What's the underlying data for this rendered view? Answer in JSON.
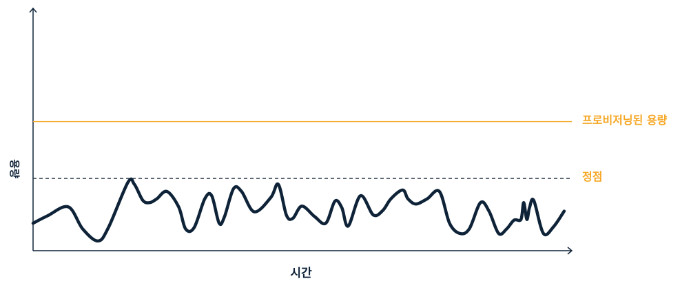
{
  "chart_data": {
    "type": "line",
    "title": "",
    "xlabel": "시간",
    "ylabel": "용량",
    "xlim": [
      0,
      100
    ],
    "ylim": [
      0,
      100
    ],
    "grid": false,
    "reference_lines": [
      {
        "label": "프로비저닝된 용량",
        "y": 54.5,
        "style": "solid",
        "color": "#F5A623"
      },
      {
        "label": "정점",
        "y": 30.5,
        "style": "dashed",
        "color": "#1B2A3A"
      }
    ],
    "series": [
      {
        "name": "",
        "color": "#0F2338",
        "x": [
          0,
          2.7,
          6.6,
          9.3,
          12.2,
          14.2,
          17.8,
          19.0,
          20.6,
          21.9,
          23.2,
          25.1,
          27.3,
          28.6,
          30.2,
          32.2,
          33.5,
          34.9,
          35.9,
          37.6,
          39.1,
          41.5,
          44.6,
          46.0,
          47.5,
          48.7,
          50.4,
          52.8,
          54.9,
          56.6,
          57.9,
          59.1,
          61.4,
          63.8,
          65.6,
          67.1,
          69.3,
          70.3,
          71.8,
          73.9,
          76.2,
          78.1,
          80.0,
          81.8,
          83.9,
          85.5,
          87.3,
          88.8,
          90.2,
          91.5,
          92.0,
          92.6,
          93.1,
          93.9,
          95.7,
          97.6,
          99.6
        ],
        "values": [
          11.6,
          14.7,
          18.5,
          9.2,
          4.1,
          10.1,
          28.9,
          28.0,
          21.2,
          20.3,
          21.9,
          25.0,
          18.5,
          9.2,
          9.7,
          21.9,
          23.2,
          11.6,
          14.4,
          26.2,
          25.0,
          16.4,
          22.5,
          28.0,
          15.1,
          13.6,
          18.8,
          14.4,
          11.6,
          20.9,
          18.2,
          10.4,
          23.2,
          15.1,
          17.0,
          21.9,
          25.6,
          21.9,
          19.7,
          21.9,
          25.0,
          11.6,
          7.3,
          9.2,
          20.3,
          16.7,
          7.3,
          9.2,
          12.9,
          13.2,
          20.3,
          13.2,
          18.2,
          21.2,
          7.3,
          10.1,
          16.7
        ]
      }
    ]
  }
}
